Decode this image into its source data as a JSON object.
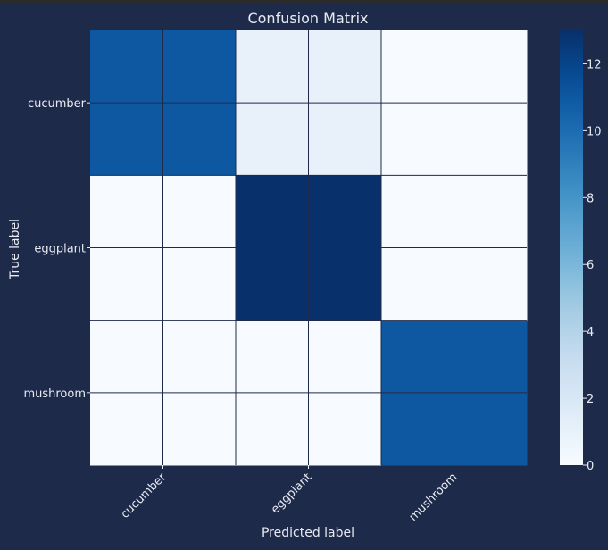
{
  "chart_data": {
    "type": "heatmap",
    "title": "Confusion Matrix",
    "xlabel": "Predicted label",
    "ylabel": "True label",
    "x_categories": [
      "cucumber",
      "eggplant",
      "mushroom"
    ],
    "y_categories": [
      "cucumber",
      "eggplant",
      "mushroom"
    ],
    "values": [
      [
        11,
        1,
        0
      ],
      [
        0,
        13,
        0
      ],
      [
        0,
        0,
        11
      ]
    ],
    "colorbar": {
      "min": 0,
      "max": 13,
      "ticks": [
        0,
        2,
        4,
        6,
        8,
        10,
        12
      ]
    },
    "colormap": "Blues",
    "grid": true
  },
  "colors": {
    "background": "#1e2a4a",
    "grid": "#1e2a4a",
    "text": "#e8ebf2"
  }
}
